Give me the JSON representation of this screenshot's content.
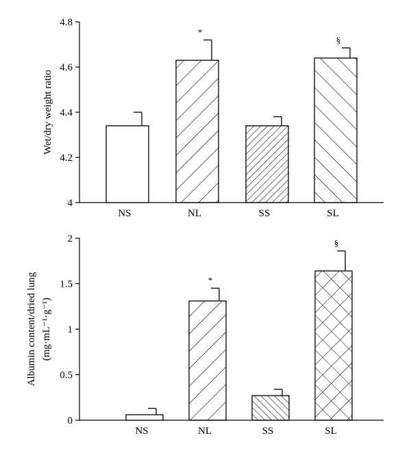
{
  "chart_data": [
    {
      "type": "bar",
      "title": "",
      "xlabel": "",
      "ylabel": "Wet/dry weight ratio",
      "ylim": [
        4,
        4.8
      ],
      "yticks": [
        "4",
        "4.2",
        "4.4",
        "4.6",
        "4.8"
      ],
      "categories": [
        "NS",
        "NL",
        "SS",
        "SL"
      ],
      "values": [
        4.34,
        4.63,
        4.34,
        4.64
      ],
      "errors": [
        0.06,
        0.09,
        0.04,
        0.045
      ],
      "annotations": [
        "",
        "*",
        "",
        "§"
      ],
      "fills": [
        "none",
        "wide-diagonal",
        "dense-diagonal",
        "wide-backslash"
      ],
      "grid": false
    },
    {
      "type": "bar",
      "title": "",
      "xlabel": "",
      "ylabel": "Albumin content/dried lung",
      "ylabel_unit": "(mg·mL⁻¹·g⁻¹)",
      "ylim": [
        0,
        2
      ],
      "yticks": [
        "0",
        "0.5",
        "1",
        "1.5",
        "2"
      ],
      "categories": [
        "NS",
        "NL",
        "SS",
        "SL"
      ],
      "values": [
        0.06,
        1.31,
        0.27,
        1.64
      ],
      "errors": [
        0.07,
        0.14,
        0.07,
        0.22
      ],
      "annotations": [
        "",
        "*",
        "",
        "§"
      ],
      "fills": [
        "none",
        "wide-diagonal",
        "dense-backslash",
        "crosshatch"
      ],
      "grid": false
    }
  ]
}
